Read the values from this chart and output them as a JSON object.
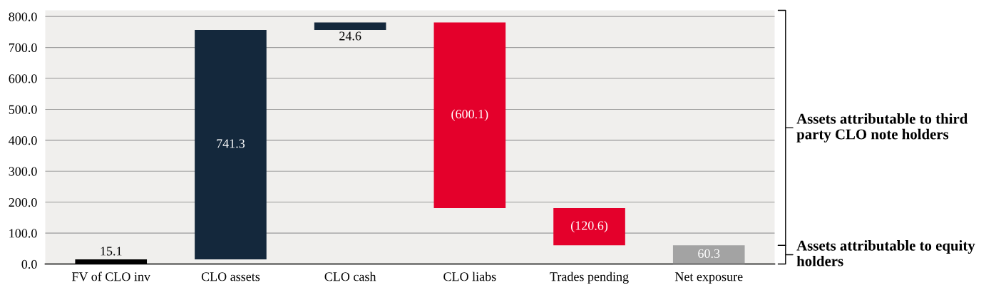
{
  "chart_data": {
    "type": "bar",
    "categories": [
      "FV of CLO inv",
      "CLO assets",
      "CLO cash",
      "CLO liabs",
      "Trades pending",
      "Net exposure"
    ],
    "values": [
      15.1,
      741.3,
      24.6,
      -600.1,
      -120.6,
      60.3
    ],
    "base": [
      0,
      15.1,
      756.4,
      781.0,
      180.9,
      0
    ],
    "colors": [
      "#000000",
      "#14283c",
      "#14283c",
      "#e4002b",
      "#e4002b",
      "#a3a3a3"
    ],
    "value_labels": [
      "15.1",
      "741.3",
      "24.6",
      "(600.1)",
      "(120.6)",
      "60.3"
    ],
    "ylim": [
      0,
      820
    ],
    "yticks": [
      {
        "value": 0,
        "label": "0.0"
      },
      {
        "value": 100,
        "label": "100.0"
      },
      {
        "value": 200,
        "label": "200.0"
      },
      {
        "value": 300,
        "label": "300.0"
      },
      {
        "value": 400,
        "label": "400.0"
      },
      {
        "value": 500,
        "label": "500.0"
      },
      {
        "value": 600,
        "label": "600.0"
      },
      {
        "value": 700,
        "label": "700.0"
      },
      {
        "value": 800,
        "label": "800.0"
      }
    ],
    "grid": "y",
    "annotations": [
      "Assets attributable to third party CLO note holders",
      "Assets attributable to equity holders"
    ]
  }
}
